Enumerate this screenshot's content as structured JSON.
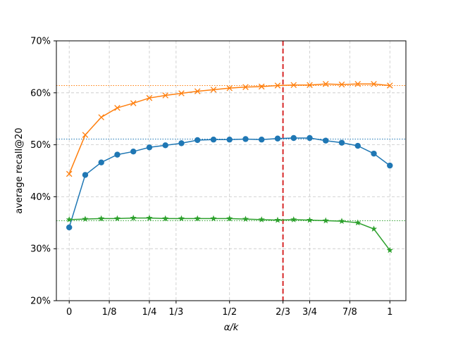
{
  "chart_data": {
    "type": "line",
    "title": "",
    "xlabel": "α/k",
    "ylabel": "average recall@20",
    "xlim": [
      -0.04,
      1.05
    ],
    "ylim": [
      0.2,
      0.7
    ],
    "x_ticks": [
      {
        "value": 0,
        "label": "0"
      },
      {
        "value": 0.125,
        "label": "1/8"
      },
      {
        "value": 0.25,
        "label": "1/4"
      },
      {
        "value": 0.3333,
        "label": "1/3"
      },
      {
        "value": 0.5,
        "label": "1/2"
      },
      {
        "value": 0.6667,
        "label": "2/3"
      },
      {
        "value": 0.75,
        "label": "3/4"
      },
      {
        "value": 0.875,
        "label": "7/8"
      },
      {
        "value": 1,
        "label": "1"
      }
    ],
    "y_ticks": [
      {
        "value": 0.2,
        "label": "20%"
      },
      {
        "value": 0.3,
        "label": "30%"
      },
      {
        "value": 0.4,
        "label": "40%"
      },
      {
        "value": 0.5,
        "label": "50%"
      },
      {
        "value": 0.6,
        "label": "60%"
      },
      {
        "value": 0.7,
        "label": "70%"
      }
    ],
    "grid": true,
    "x": [
      0,
      0.05,
      0.1,
      0.15,
      0.2,
      0.25,
      0.3,
      0.35,
      0.4,
      0.45,
      0.5,
      0.55,
      0.6,
      0.65,
      0.7,
      0.75,
      0.8,
      0.85,
      0.9,
      0.95,
      1.0
    ],
    "series": [
      {
        "color": "#ff7f0e",
        "marker": "x",
        "values": [
          0.444,
          0.519,
          0.553,
          0.571,
          0.58,
          0.59,
          0.595,
          0.599,
          0.603,
          0.606,
          0.609,
          0.611,
          0.612,
          0.614,
          0.615,
          0.615,
          0.617,
          0.616,
          0.617,
          0.617,
          0.614
        ],
        "reference": 0.614
      },
      {
        "color": "#1f77b4",
        "marker": "o",
        "values": [
          0.341,
          0.442,
          0.466,
          0.481,
          0.487,
          0.495,
          0.499,
          0.503,
          0.509,
          0.51,
          0.51,
          0.511,
          0.51,
          0.512,
          0.513,
          0.513,
          0.508,
          0.504,
          0.498,
          0.483,
          0.46
        ],
        "reference": 0.511
      },
      {
        "color": "#2ca02c",
        "marker": "*",
        "values": [
          0.356,
          0.357,
          0.358,
          0.358,
          0.359,
          0.359,
          0.358,
          0.358,
          0.358,
          0.358,
          0.358,
          0.357,
          0.356,
          0.355,
          0.356,
          0.355,
          0.354,
          0.353,
          0.35,
          0.338,
          0.297
        ],
        "reference": 0.354
      }
    ],
    "vertical_marker": {
      "value": 0.6667,
      "color": "#d62728",
      "style": "dashed"
    }
  }
}
